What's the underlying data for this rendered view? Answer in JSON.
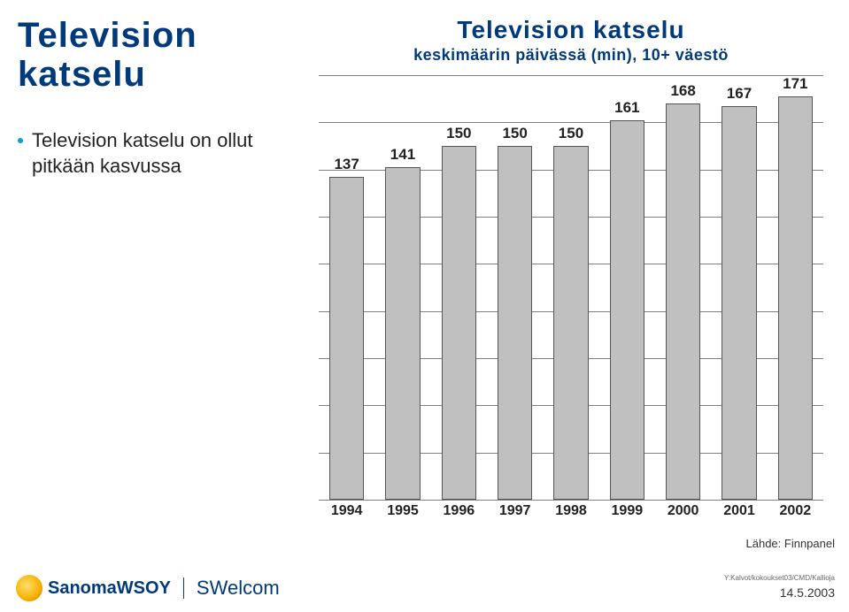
{
  "left_title_line1": "Television",
  "left_title_line2": "katselu",
  "bullet": "Television katselu on ollut pitkään kasvussa",
  "chart": {
    "type": "bar",
    "title_line1": "Television katselu",
    "title_line2": "keskimäärin päivässä (min), 10+ väestö",
    "categories": [
      "1994",
      "1995",
      "1996",
      "1997",
      "1998",
      "1999",
      "2000",
      "2001",
      "2002"
    ],
    "values": [
      137,
      141,
      150,
      150,
      150,
      161,
      168,
      167,
      171
    ],
    "bar_color": "#c0c0c0",
    "bar_border": "#555555",
    "grid_color": "#808080",
    "background_color": "#ffffff",
    "ylim": [
      0,
      180
    ],
    "ytick_step": 20,
    "bar_width_ratio": 0.62,
    "label_fontsize": 17,
    "xlabel_fontsize": 16,
    "label_color": "#222222",
    "title_color": "#003a7a",
    "title_fontsize_line1": 28,
    "title_fontsize_line2": 18
  },
  "source": "Lähde: Finnpanel",
  "footer": {
    "logo_text": "SanomaWSOY",
    "unit": "SWelcom",
    "small_print": "Y:Kalvot/kokoukset03/CMD/Kallioja",
    "date": "14.5.2003"
  }
}
